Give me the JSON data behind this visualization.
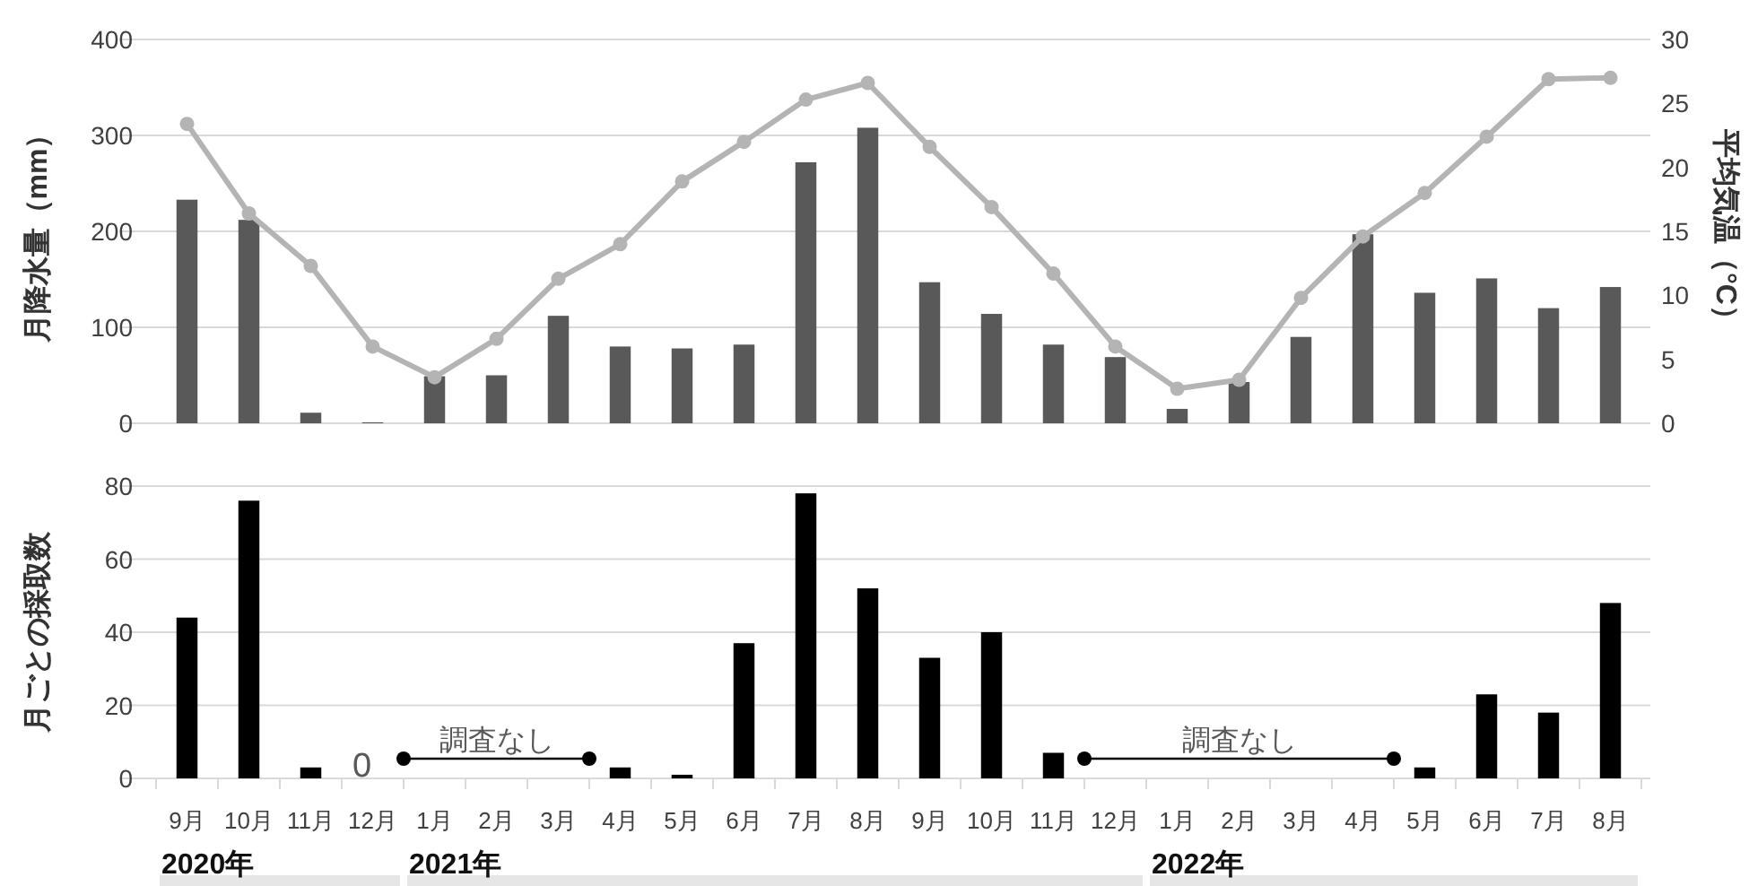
{
  "chart_data": [
    {
      "type": "bar",
      "categories": [
        null,
        null,
        null,
        null,
        null,
        null,
        null,
        null,
        null,
        null,
        null,
        null,
        null,
        null,
        null,
        null,
        null,
        null,
        null,
        null,
        null,
        null,
        null,
        null
      ],
      "series": [
        {
          "type": "bar",
          "color": "#595959",
          "values": [
            233,
            212,
            11,
            1,
            49,
            50,
            112,
            80,
            78,
            82,
            272,
            308,
            147,
            114,
            82,
            69,
            15,
            43,
            90,
            197,
            136,
            151,
            120,
            142
          ]
        },
        {
          "type": "line",
          "axis": "y2",
          "color": "#b4b4b4",
          "marker": "circle",
          "values": [
            23.4,
            16.4,
            12.3,
            6.0,
            3.6,
            6.6,
            11.3,
            14.0,
            18.9,
            22.0,
            25.3,
            26.6,
            21.6,
            16.9,
            11.7,
            6.0,
            2.7,
            3.4,
            9.8,
            14.6,
            18.0,
            22.4,
            26.9,
            27.0
          ]
        }
      ],
      "ylabel": "月降水量（mm）",
      "y2label": "平均気温（°C）",
      "ylim": [
        0,
        400
      ],
      "yticks": [
        0,
        100,
        200,
        300,
        400
      ],
      "y2lim": [
        0,
        30
      ],
      "y2ticks": [
        0,
        5,
        10,
        15,
        20,
        25,
        30
      ],
      "grid": "y",
      "tick_labels": "y"
    },
    {
      "type": "bar",
      "categories": [
        "9月",
        "10月",
        "11月",
        "12月",
        "1月",
        "2月",
        "3月",
        "4月",
        "5月",
        "6月",
        "7月",
        "8月",
        "9月",
        "10月",
        "11月",
        "12月",
        "1月",
        "2月",
        "3月",
        "4月",
        "5月",
        "6月",
        "7月",
        "8月"
      ],
      "values": [
        44,
        76,
        3,
        0,
        null,
        null,
        null,
        3,
        1,
        37,
        78,
        52,
        33,
        40,
        7,
        null,
        null,
        null,
        null,
        null,
        3,
        23,
        18,
        48
      ],
      "value_labels": [
        null,
        null,
        null,
        "0",
        null,
        null,
        null,
        null,
        null,
        null,
        null,
        null,
        null,
        null,
        null,
        null,
        null,
        null,
        null,
        null,
        null,
        null,
        null,
        null
      ],
      "color": "#000000",
      "ylabel": "月ごとの採取数",
      "ylim": [
        0,
        80
      ],
      "yticks": [
        0,
        20,
        40,
        60,
        80
      ],
      "grid": "y",
      "annotations": [
        "2020年",
        "2021年",
        "2022年",
        "調査なし",
        "調査なし"
      ]
    }
  ]
}
